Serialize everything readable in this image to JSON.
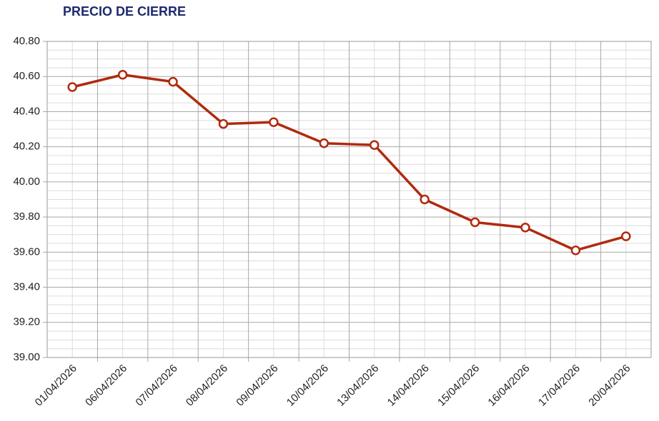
{
  "chart_data": {
    "type": "line",
    "title": "PRECIO DE CIERRE",
    "categories": [
      "01/04/2026",
      "06/04/2026",
      "07/04/2026",
      "08/04/2026",
      "09/04/2026",
      "10/04/2026",
      "13/04/2026",
      "14/04/2026",
      "15/04/2026",
      "16/04/2026",
      "17/04/2026",
      "20/04/2026"
    ],
    "series": [
      {
        "name": "Precio de cierre",
        "color": "#b02a0e",
        "values": [
          40.54,
          40.61,
          40.57,
          40.33,
          40.34,
          40.22,
          40.21,
          39.9,
          39.77,
          39.74,
          39.61,
          39.69
        ]
      }
    ],
    "ylim": [
      39.0,
      40.8
    ],
    "yticks": [
      {
        "value": 39.0,
        "label": "39.00"
      },
      {
        "value": 39.2,
        "label": "39.20"
      },
      {
        "value": 39.4,
        "label": "39.40"
      },
      {
        "value": 39.6,
        "label": "39.60"
      },
      {
        "value": 39.8,
        "label": "39.80"
      },
      {
        "value": 40.0,
        "label": "40.00"
      },
      {
        "value": 40.2,
        "label": "40.20"
      },
      {
        "value": 40.4,
        "label": "40.40"
      },
      {
        "value": 40.6,
        "label": "40.60"
      },
      {
        "value": 40.8,
        "label": "40.80"
      }
    ],
    "minor_yticks": [
      39.05,
      39.1,
      39.15,
      39.25,
      39.3,
      39.35,
      39.45,
      39.5,
      39.55,
      39.65,
      39.7,
      39.75,
      39.85,
      39.9,
      39.95,
      40.05,
      40.1,
      40.15,
      40.25,
      40.3,
      40.35,
      40.45,
      40.5,
      40.55,
      40.65,
      40.7,
      40.75
    ],
    "grid": true
  }
}
